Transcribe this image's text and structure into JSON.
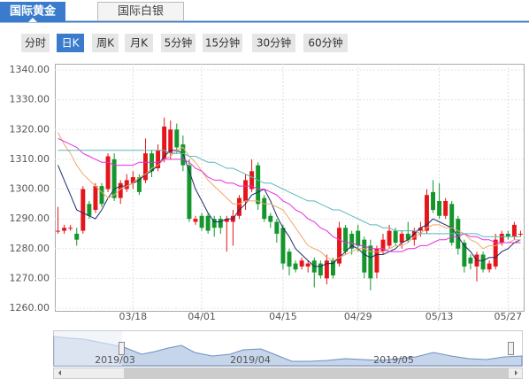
{
  "ui": {
    "tabs": [
      "国际黄金",
      "国际白银"
    ],
    "periods": [
      "分时",
      "日K",
      "周K",
      "月K",
      "5分钟",
      "15分钟",
      "30分钟",
      "60分钟"
    ],
    "active_period": 1
  },
  "navigator": {
    "labels": [
      "2019/03",
      "2019/04",
      "2019/05"
    ]
  },
  "chart_data": {
    "type": "candlestick",
    "categories": [
      null,
      null,
      null,
      null,
      null,
      null,
      null,
      null,
      null,
      null,
      null,
      null,
      "03/18",
      null,
      null,
      null,
      null,
      null,
      null,
      null,
      null,
      null,
      null,
      "04/01",
      null,
      null,
      null,
      null,
      null,
      null,
      null,
      null,
      null,
      null,
      null,
      null,
      "04/15",
      null,
      null,
      null,
      null,
      null,
      null,
      null,
      null,
      null,
      null,
      null,
      "04/29",
      null,
      null,
      null,
      null,
      null,
      null,
      null,
      null,
      null,
      null,
      null,
      null,
      "05/13",
      null,
      null,
      null,
      null,
      null,
      null,
      null,
      null,
      null,
      null,
      "05/27",
      null,
      null
    ],
    "open": [
      1286,
      1286,
      1287,
      1285,
      1286,
      1295,
      1293,
      1301,
      1300,
      1310,
      1297,
      1300,
      1302,
      1304,
      1303,
      1312,
      1307,
      1310,
      1312,
      1320,
      1315,
      1308,
      1289,
      1291,
      1291,
      1290,
      1290,
      1289,
      1289,
      1291,
      1296,
      1300,
      1308,
      1297,
      1291,
      1289,
      1287,
      1279,
      1275,
      1274,
      1274,
      1276,
      1275,
      1270,
      1276,
      1275,
      1287,
      1285,
      1286,
      1283,
      1281,
      1272,
      1279,
      1281,
      1286,
      1282,
      1285,
      1283,
      1286,
      1286,
      1299,
      1296,
      1291,
      1295,
      1290,
      1282,
      1277,
      1274,
      1278,
      1273,
      1274,
      1282,
      1285,
      1284,
      1285
    ],
    "high": [
      1294,
      1288,
      1288,
      1287,
      1301,
      1296,
      1302,
      1302,
      1312,
      1312,
      1303,
      1305,
      1306,
      1305,
      1317,
      1313,
      1315,
      1324,
      1323,
      1322,
      1318,
      1310,
      1291,
      1292,
      1292,
      1291,
      1291,
      1291,
      1293,
      1298,
      1305,
      1310,
      1309,
      1298,
      1292,
      1290,
      1288,
      1280,
      1276,
      1277,
      1276,
      1277,
      1276,
      1278,
      1277,
      1289,
      1288,
      1286,
      1288,
      1284,
      1283,
      1281,
      1285,
      1288,
      1287,
      1286,
      1289,
      1287,
      1289,
      1300,
      1303,
      1302,
      1297,
      1296,
      1291,
      1283,
      1278,
      1279,
      1279,
      1276,
      1285,
      1286,
      1286,
      1289,
      1286
    ],
    "low": [
      1285,
      1285,
      1286,
      1281,
      1285,
      1290,
      1292,
      1294,
      1299,
      1296,
      1295,
      1299,
      1300,
      1298,
      1302,
      1304,
      1306,
      1309,
      1310,
      1312,
      1306,
      1289,
      1288,
      1286,
      1285,
      1284,
      1285,
      1279,
      1281,
      1290,
      1293,
      1299,
      1293,
      1289,
      1287,
      1282,
      1273,
      1271,
      1272,
      1273,
      1272,
      1267,
      1270,
      1268,
      1270,
      1274,
      1278,
      1278,
      1279,
      1270,
      1266,
      1270,
      1278,
      1280,
      1281,
      1280,
      1282,
      1281,
      1284,
      1285,
      1292,
      1290,
      1290,
      1281,
      1278,
      1272,
      1273,
      1269,
      1272,
      1272,
      1273,
      1281,
      1283,
      1283,
      1284
    ],
    "close": [
      1286,
      1287,
      1287,
      1283,
      1300,
      1291,
      1301,
      1295,
      1311,
      1297,
      1302,
      1303,
      1304,
      1299,
      1312,
      1306,
      1313,
      1321,
      1320,
      1314,
      1308,
      1290,
      1290,
      1287,
      1286,
      1287,
      1287,
      1290,
      1291,
      1297,
      1303,
      1306,
      1295,
      1290,
      1289,
      1285,
      1275,
      1274,
      1273,
      1276,
      1275,
      1272,
      1271,
      1276,
      1271,
      1287,
      1279,
      1280,
      1281,
      1272,
      1270,
      1280,
      1283,
      1286,
      1282,
      1285,
      1283,
      1286,
      1287,
      1298,
      1293,
      1291,
      1296,
      1282,
      1280,
      1274,
      1275,
      1278,
      1273,
      1275,
      1283,
      1285,
      1284,
      1288,
      1285
    ],
    "up_color": "#e5161b",
    "down_color": "#14962c",
    "series": [
      {
        "color": "#1f2d6b",
        "values": [
          1308,
          1303,
          1298,
          1293,
          1292,
          1291,
          1290,
          1293,
          1297,
          1300,
          1301,
          1301,
          1302,
          1303,
          1305,
          1306,
          1308,
          1311,
          1313,
          1313,
          1312,
          1306,
          1300,
          1296,
          1292,
          1289,
          1289,
          1290,
          1290,
          1293,
          1295,
          1298,
          1299,
          1300,
          1296,
          1291,
          1287,
          1284,
          1280,
          1278,
          1276,
          1274,
          1274,
          1275,
          1275,
          1277,
          1279,
          1281,
          1280,
          1278,
          1277,
          1278,
          1278,
          1279,
          1280,
          1282,
          1283,
          1285,
          1287,
          1288,
          1290,
          1289,
          1288,
          1287,
          1284,
          1281,
          1279,
          1276,
          1276,
          1277,
          1277,
          1279,
          1280,
          1282,
          1283
        ]
      },
      {
        "color": "#f0a868",
        "values": [
          1319,
          1315,
          1312,
          1308,
          1305,
          1303,
          1301,
          1299,
          1297,
          1298,
          1300,
          1301,
          1302,
          1304,
          1305,
          1307,
          1308,
          1310,
          1311,
          1313,
          1314,
          1311,
          1309,
          1306,
          1303,
          1301,
          1299,
          1297,
          1295,
          1295,
          1296,
          1296,
          1296,
          1295,
          1295,
          1294,
          1293,
          1290,
          1287,
          1284,
          1281,
          1280,
          1279,
          1277,
          1276,
          1277,
          1278,
          1279,
          1280,
          1280,
          1279,
          1279,
          1279,
          1280,
          1281,
          1281,
          1282,
          1284,
          1285,
          1287,
          1288,
          1288,
          1287,
          1287,
          1286,
          1285,
          1283,
          1282,
          1280,
          1281,
          1281,
          1282,
          1282,
          1283,
          1283
        ]
      },
      {
        "color": "#e62ee0",
        "values": [
          1317,
          1316,
          1315,
          1314,
          1312,
          1311,
          1310,
          1309,
          1309,
          1308,
          1308,
          1308,
          1308,
          1309,
          1309,
          1309,
          1309,
          1310,
          1310,
          1310,
          1310,
          1309,
          1307,
          1306,
          1304,
          1303,
          1303,
          1302,
          1302,
          1301,
          1301,
          1301,
          1300,
          1300,
          1299,
          1298,
          1296,
          1295,
          1293,
          1292,
          1290,
          1289,
          1287,
          1286,
          1284,
          1283,
          1282,
          1282,
          1281,
          1281,
          1280,
          1280,
          1280,
          1279,
          1279,
          1279,
          1280,
          1280,
          1281,
          1281,
          1282,
          1283,
          1283,
          1284,
          1284,
          1285,
          1284,
          1284,
          1283,
          1283,
          1282,
          1282,
          1282,
          1282,
          1282
        ]
      },
      {
        "color": "#5cb8c0",
        "values": [
          1313,
          1313,
          1313,
          1313,
          1313,
          1313,
          1313,
          1313,
          1313,
          1313,
          1313,
          1313,
          1313,
          1313,
          1313,
          1313,
          1313,
          1313,
          1312,
          1312,
          1312,
          1311,
          1311,
          1310,
          1309,
          1309,
          1308,
          1307,
          1307,
          1306,
          1305,
          1304,
          1303,
          1302,
          1302,
          1301,
          1300,
          1299,
          1298,
          1297,
          1296,
          1296,
          1295,
          1294,
          1293,
          1293,
          1292,
          1291,
          1290,
          1289,
          1288,
          1288,
          1287,
          1287,
          1286,
          1286,
          1286,
          1286,
          1285,
          1285,
          1285,
          1285,
          1285,
          1285,
          1285,
          1285,
          1285,
          1285,
          1284,
          1284,
          1284,
          1284,
          1284,
          1284,
          1284
        ]
      }
    ],
    "ylim": [
      1260,
      1340
    ],
    "yticks": [
      {
        "value": 1260,
        "label": "1260.00"
      },
      {
        "value": 1270,
        "label": "1270.00"
      },
      {
        "value": 1280,
        "label": "1280.00"
      },
      {
        "value": 1290,
        "label": "1290.00"
      },
      {
        "value": 1300,
        "label": "1300.00"
      },
      {
        "value": 1310,
        "label": "1310.00"
      },
      {
        "value": 1320,
        "label": "1320.00"
      },
      {
        "value": 1330,
        "label": "1330.00"
      },
      {
        "value": 1340,
        "label": "1340.00"
      }
    ],
    "grid": true
  }
}
